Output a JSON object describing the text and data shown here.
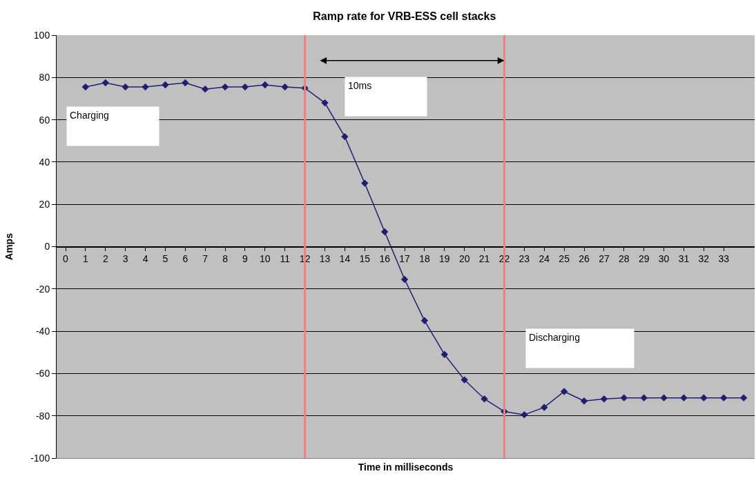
{
  "chart_data": {
    "type": "line",
    "title": "Ramp rate for VRB-ESS cell stacks",
    "xlabel": "Time in milliseconds",
    "ylabel": "Amps",
    "x": [
      1,
      2,
      3,
      4,
      5,
      6,
      7,
      8,
      9,
      10,
      11,
      12,
      13,
      14,
      15,
      16,
      17,
      18,
      19,
      20,
      21,
      22,
      23,
      24,
      25,
      26,
      27,
      28,
      29,
      30,
      31,
      32,
      33,
      34
    ],
    "series": [
      {
        "color": "#1f1f70",
        "values": [
          75.5,
          77.5,
          75.5,
          75.5,
          76.5,
          77.5,
          74.5,
          75.5,
          75.5,
          76.5,
          75.5,
          75,
          68,
          52,
          30,
          7,
          -15.5,
          -35,
          -51,
          -63,
          -72,
          -78,
          -79.5,
          -76,
          -68.5,
          -73,
          -72,
          -71.5,
          -71.5,
          -71.5,
          -71.5,
          -71.5,
          -71.5,
          -71.5
        ]
      }
    ],
    "xlim": [
      -0.45,
      34.55
    ],
    "xticks": [
      0,
      1,
      2,
      3,
      4,
      5,
      6,
      7,
      8,
      9,
      10,
      11,
      12,
      13,
      14,
      15,
      16,
      17,
      18,
      19,
      20,
      21,
      22,
      23,
      24,
      25,
      26,
      27,
      28,
      29,
      30,
      31,
      32,
      33
    ],
    "ylim": [
      -100,
      100
    ],
    "yticks": [
      -100,
      -80,
      -60,
      -40,
      -20,
      0,
      20,
      40,
      60,
      80,
      100
    ],
    "grid": "y",
    "legend": false,
    "marker": "diamond",
    "line_style": "solid",
    "ref_lines": [
      {
        "axis": "x",
        "value": 12,
        "color": "#f08080"
      },
      {
        "axis": "x",
        "value": 22,
        "color": "#f08080"
      }
    ],
    "annotations": [
      "Charging",
      "10ms",
      "Discharging"
    ]
  }
}
